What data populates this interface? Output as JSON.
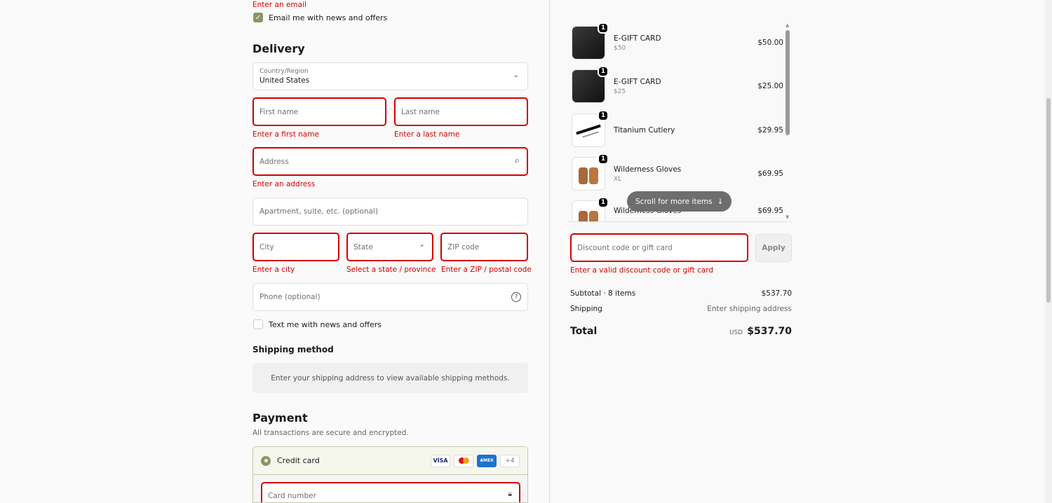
{
  "contact": {
    "email_error": "Enter an email",
    "newsletter_label": "Email me with news and offers",
    "newsletter_checked": true
  },
  "delivery": {
    "title": "Delivery",
    "country_label": "Country/Region",
    "country_value": "United States",
    "first_name_placeholder": "First name",
    "first_name_error": "Enter a first name",
    "last_name_placeholder": "Last name",
    "last_name_error": "Enter a last name",
    "address_placeholder": "Address",
    "address_error": "Enter an address",
    "apartment_placeholder": "Apartment, suite, etc. (optional)",
    "city_placeholder": "City",
    "city_error": "Enter a city",
    "state_placeholder": "State",
    "state_error": "Select a state / province",
    "zip_placeholder": "ZIP code",
    "zip_error": "Enter a ZIP / postal code",
    "phone_placeholder": "Phone (optional)",
    "sms_label": "Text me with news and offers",
    "sms_checked": false
  },
  "shipping": {
    "title": "Shipping method",
    "notice": "Enter your shipping address to view available shipping methods."
  },
  "payment": {
    "title": "Payment",
    "subtitle": "All transactions are secure and encrypted.",
    "method_label": "Credit card",
    "card_brands": [
      "VISA",
      "Mastercard",
      "AMEX"
    ],
    "more_brands": "+4",
    "card_number_placeholder": "Card number"
  },
  "cart": {
    "items": [
      {
        "name": "E-GIFT CARD",
        "variant": "$50",
        "price": "$50.00",
        "qty": "1"
      },
      {
        "name": "E-GIFT CARD",
        "variant": "$25",
        "price": "$25.00",
        "qty": "1"
      },
      {
        "name": "Titanium Cutlery",
        "variant": "",
        "price": "$29.95",
        "qty": "1"
      },
      {
        "name": "Wilderness Gloves",
        "variant": "XL",
        "price": "$69.95",
        "qty": "1"
      },
      {
        "name": "Wilderness Gloves",
        "variant": "",
        "price": "$69.95",
        "qty": "1"
      }
    ],
    "scroll_hint": "Scroll for more items",
    "discount_placeholder": "Discount code or gift card",
    "apply_label": "Apply",
    "discount_error": "Enter a valid discount code or gift card",
    "subtotal_label": "Subtotal · 8 items",
    "subtotal_value": "$537.70",
    "shipping_label": "Shipping",
    "shipping_value": "Enter shipping address",
    "total_label": "Total",
    "currency": "USD",
    "total_value": "$537.70"
  },
  "colors": {
    "accent": "#8a9665",
    "error": "#d10000"
  }
}
